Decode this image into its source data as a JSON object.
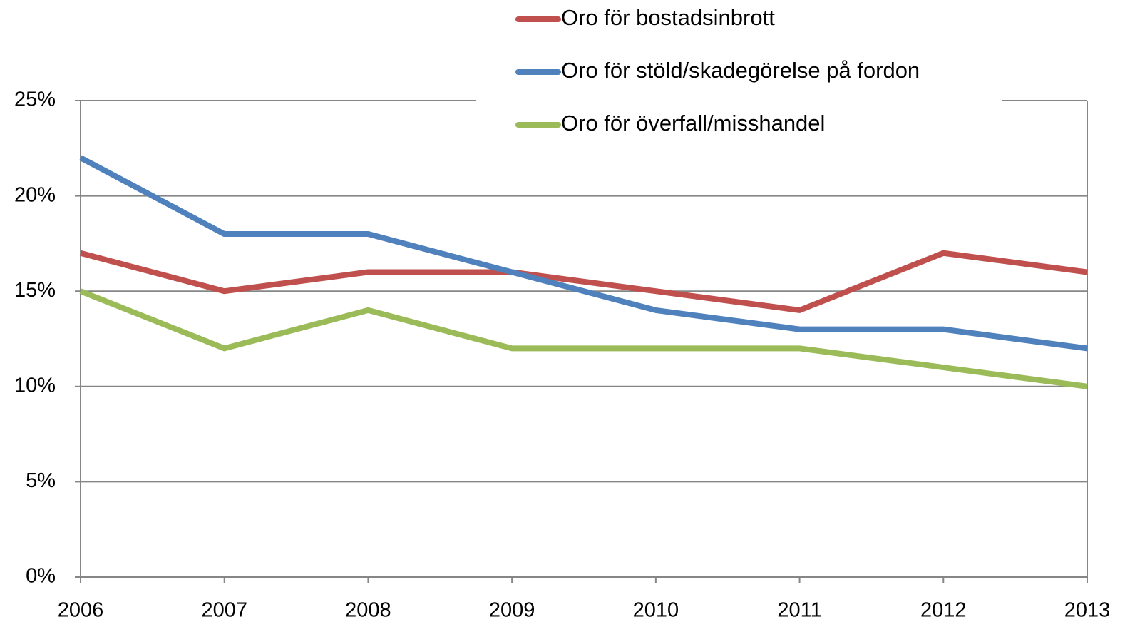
{
  "chart_data": {
    "type": "line",
    "categories": [
      "2006",
      "2007",
      "2008",
      "2009",
      "2010",
      "2011",
      "2012",
      "2013"
    ],
    "series": [
      {
        "name": "Oro för bostadsinbrott",
        "color": "#c0504d",
        "values": [
          17,
          15,
          16,
          16,
          15,
          14,
          17,
          16
        ]
      },
      {
        "name": "Oro för stöld/skadegörelse på fordon",
        "color": "#4f81bd",
        "values": [
          22,
          18,
          18,
          16,
          14,
          13,
          13,
          12
        ]
      },
      {
        "name": "Oro för överfall/misshandel",
        "color": "#9bbb59",
        "values": [
          15,
          12,
          14,
          12,
          12,
          12,
          11,
          10
        ]
      }
    ],
    "ylim": [
      0,
      25
    ],
    "yticks": [
      {
        "value": 0,
        "label": "0%"
      },
      {
        "value": 5,
        "label": "5%"
      },
      {
        "value": 10,
        "label": "10%"
      },
      {
        "value": 15,
        "label": "15%"
      },
      {
        "value": 20,
        "label": "20%"
      },
      {
        "value": 25,
        "label": "25%"
      }
    ],
    "grid": true,
    "legend": "top"
  }
}
